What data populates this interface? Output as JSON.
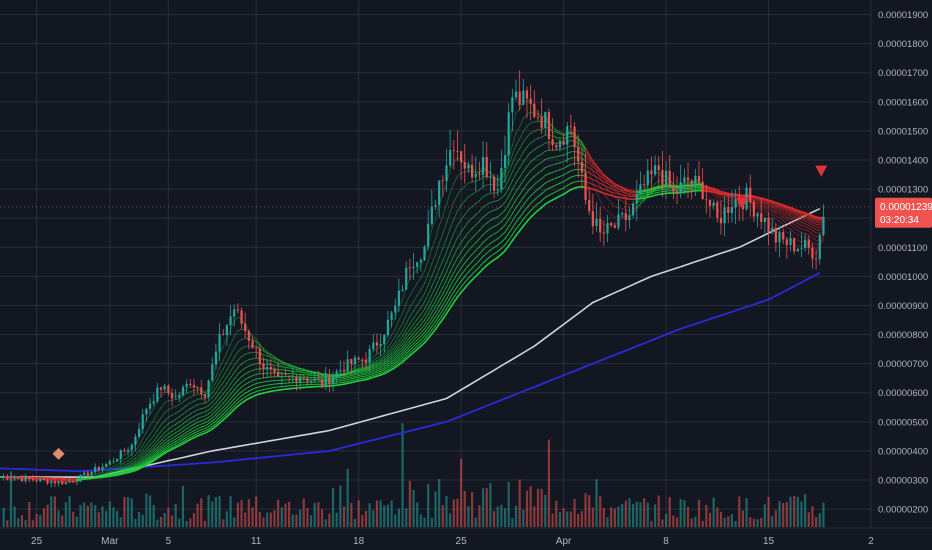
{
  "chart_data": {
    "type": "candlestick",
    "title": "",
    "xlabel": "",
    "ylabel": "",
    "ylim": [
      1.35e-06,
      1.95e-05
    ],
    "grid": true,
    "x_ticks": [
      {
        "label": "25",
        "day": -4
      },
      {
        "label": "Mar",
        "day": 1
      },
      {
        "label": "5",
        "day": 5
      },
      {
        "label": "11",
        "day": 11
      },
      {
        "label": "18",
        "day": 18
      },
      {
        "label": "25",
        "day": 25
      },
      {
        "label": "Apr",
        "day": 32
      },
      {
        "label": "8",
        "day": 39
      },
      {
        "label": "15",
        "day": 46
      },
      {
        "label": "2",
        "day": 53
      }
    ],
    "x_range_days": [
      -6.5,
      53
    ],
    "y_ticks": [
      "0.00000200",
      "0.00000300",
      "0.00000400",
      "0.00000500",
      "0.00000600",
      "0.00000700",
      "0.00000800",
      "0.00000900",
      "0.00001000",
      "0.00001100",
      "0.00001200",
      "0.00001300",
      "0.00001400",
      "0.00001500",
      "0.00001600",
      "0.00001700",
      "0.00001800",
      "0.00001900"
    ],
    "last_price": {
      "value": 1.239e-05,
      "label": "0.00001239",
      "countdown": "03:20:34"
    },
    "price_path": [
      {
        "day": -6.5,
        "price": 3.1e-06
      },
      {
        "day": -4,
        "price": 3e-06
      },
      {
        "day": -2,
        "price": 2.9e-06
      },
      {
        "day": -1,
        "price": 3.1e-06
      },
      {
        "day": 1,
        "price": 3.6e-06
      },
      {
        "day": 2.5,
        "price": 4.2e-06
      },
      {
        "day": 3.5,
        "price": 5.5e-06
      },
      {
        "day": 4.5,
        "price": 6.2e-06
      },
      {
        "day": 5.5,
        "price": 5.8e-06
      },
      {
        "day": 6.5,
        "price": 6.4e-06
      },
      {
        "day": 7.5,
        "price": 6e-06
      },
      {
        "day": 8.5,
        "price": 7.8e-06
      },
      {
        "day": 9.5,
        "price": 8.9e-06
      },
      {
        "day": 10.5,
        "price": 7.9e-06
      },
      {
        "day": 11.5,
        "price": 6.9e-06
      },
      {
        "day": 12.5,
        "price": 6.4e-06
      },
      {
        "day": 14,
        "price": 6.6e-06
      },
      {
        "day": 15.5,
        "price": 6.3e-06
      },
      {
        "day": 17,
        "price": 6.9e-06
      },
      {
        "day": 18.5,
        "price": 7.2e-06
      },
      {
        "day": 19.5,
        "price": 7.9e-06
      },
      {
        "day": 20.5,
        "price": 8.9e-06
      },
      {
        "day": 21.5,
        "price": 1.05e-05
      },
      {
        "day": 22.5,
        "price": 1.1e-05
      },
      {
        "day": 23.5,
        "price": 1.33e-05
      },
      {
        "day": 24.5,
        "price": 1.47e-05
      },
      {
        "day": 25.5,
        "price": 1.36e-05
      },
      {
        "day": 26.5,
        "price": 1.4e-05
      },
      {
        "day": 27.5,
        "price": 1.3e-05
      },
      {
        "day": 28.5,
        "price": 1.62e-05
      },
      {
        "day": 29.5,
        "price": 1.59e-05
      },
      {
        "day": 30.5,
        "price": 1.55e-05
      },
      {
        "day": 31.5,
        "price": 1.47e-05
      },
      {
        "day": 32.5,
        "price": 1.52e-05
      },
      {
        "day": 33.5,
        "price": 1.26e-05
      },
      {
        "day": 34.5,
        "price": 1.14e-05
      },
      {
        "day": 35.5,
        "price": 1.17e-05
      },
      {
        "day": 36.5,
        "price": 1.21e-05
      },
      {
        "day": 37.5,
        "price": 1.31e-05
      },
      {
        "day": 38.5,
        "price": 1.37e-05
      },
      {
        "day": 39.5,
        "price": 1.28e-05
      },
      {
        "day": 40.5,
        "price": 1.33e-05
      },
      {
        "day": 41.5,
        "price": 1.3e-05
      },
      {
        "day": 42.5,
        "price": 1.19e-05
      },
      {
        "day": 43.5,
        "price": 1.26e-05
      },
      {
        "day": 44.5,
        "price": 1.27e-05
      },
      {
        "day": 45.5,
        "price": 1.21e-05
      },
      {
        "day": 46.5,
        "price": 1.13e-05
      },
      {
        "day": 47.5,
        "price": 1.11e-05
      },
      {
        "day": 48.5,
        "price": 1.1e-05
      },
      {
        "day": 49.3,
        "price": 1.08e-05
      },
      {
        "day": 49.8,
        "price": 1.239e-05
      }
    ],
    "ma_long": [
      {
        "day": -6.5,
        "price": 3.1e-06
      },
      {
        "day": 0,
        "price": 3.1e-06
      },
      {
        "day": 8,
        "price": 4e-06
      },
      {
        "day": 16,
        "price": 4.7e-06
      },
      {
        "day": 24,
        "price": 5.8e-06
      },
      {
        "day": 30,
        "price": 7.6e-06
      },
      {
        "day": 34,
        "price": 9.1e-06
      },
      {
        "day": 38,
        "price": 1e-05
      },
      {
        "day": 44,
        "price": 1.1e-05
      },
      {
        "day": 49.8,
        "price": 1.24e-05
      }
    ],
    "ma_very_long": [
      {
        "day": -6.5,
        "price": 3.4e-06
      },
      {
        "day": -1,
        "price": 3.3e-06
      },
      {
        "day": 8,
        "price": 3.6e-06
      },
      {
        "day": 16,
        "price": 4e-06
      },
      {
        "day": 24,
        "price": 5e-06
      },
      {
        "day": 32,
        "price": 6.6e-06
      },
      {
        "day": 40,
        "price": 8.2e-06
      },
      {
        "day": 46,
        "price": 9.2e-06
      },
      {
        "day": 49.8,
        "price": 1.02e-05
      }
    ],
    "ribbon_count": 14,
    "markers": [
      {
        "shape": "diamond",
        "day": -2.5,
        "price": 3.9e-06,
        "color": "#e38a6b"
      },
      {
        "shape": "triangle-down",
        "day": 44.2,
        "price": 1.25e-05,
        "color": "#e0343a"
      },
      {
        "shape": "triangle-down",
        "day": 49.6,
        "price": 1.36e-05,
        "color": "#e0343a"
      }
    ],
    "colors": {
      "up": "#26a69a",
      "down": "#ef5350",
      "ma_long": "#d1d4dc",
      "ma_very_long": "#2a2ad8",
      "ribbon_bull": "#1fd03a",
      "ribbon_bear": "#d42a2a",
      "price_tag": "#ef5350",
      "grid": "#2a2e39",
      "axis_text": "#b2b5be"
    }
  }
}
